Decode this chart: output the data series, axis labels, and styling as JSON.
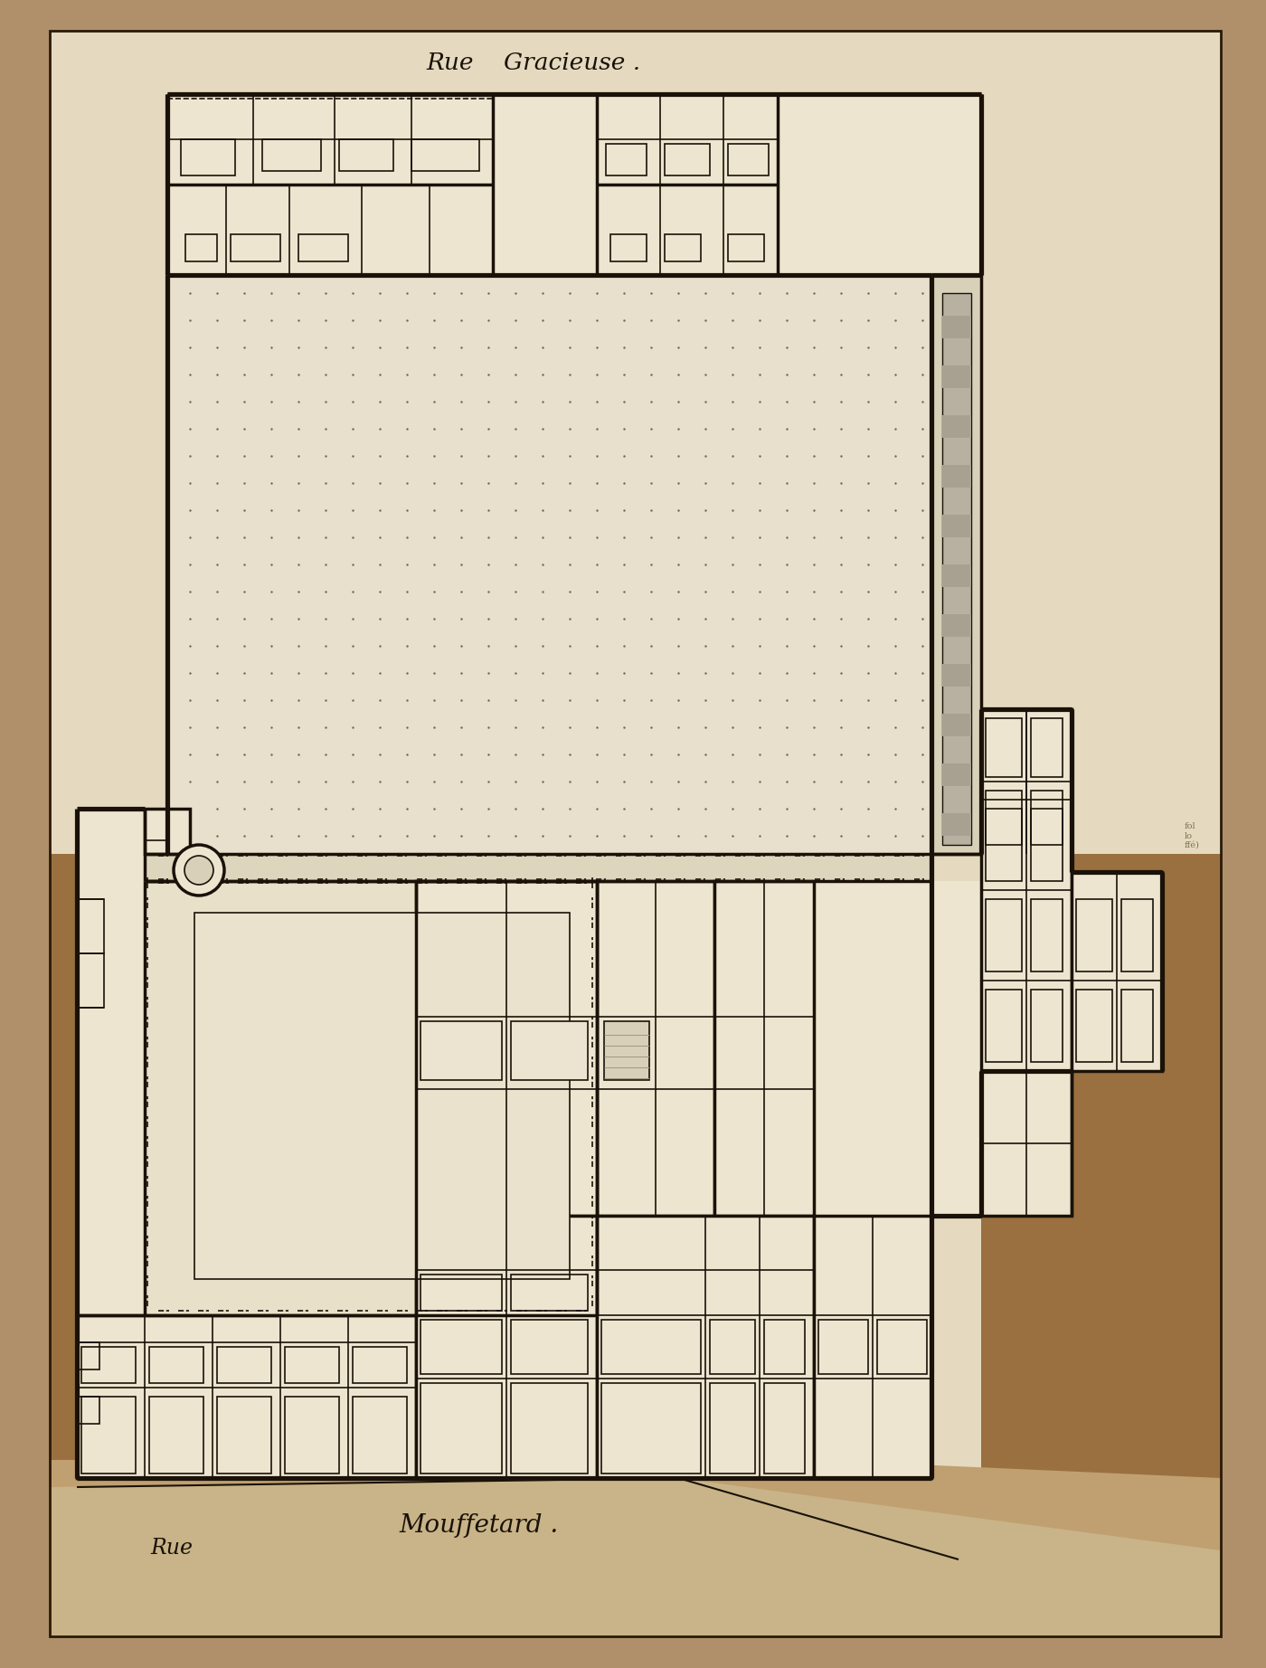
{
  "bg_outer": "#b5956a",
  "bg_paper": "#e8ddc8",
  "bg_brown_stain": "#9a7848",
  "wall_color": "#1a1208",
  "line_width": 2.5,
  "thin_lw": 1.2,
  "dashed_lw": 1.0,
  "title_top": "Rue    Gracieuse .",
  "title_bottom_left": "Rue",
  "title_bottom_right": "Mouffetard .",
  "figsize": [
    14.0,
    18.44
  ],
  "dpi": 100,
  "room_fill": "#ede5d0",
  "courtyard_fill": "#e5dcc8",
  "road_fill": "#c8aa80",
  "stair_fill": "#c0b898",
  "frame_color": "#2a1a08"
}
